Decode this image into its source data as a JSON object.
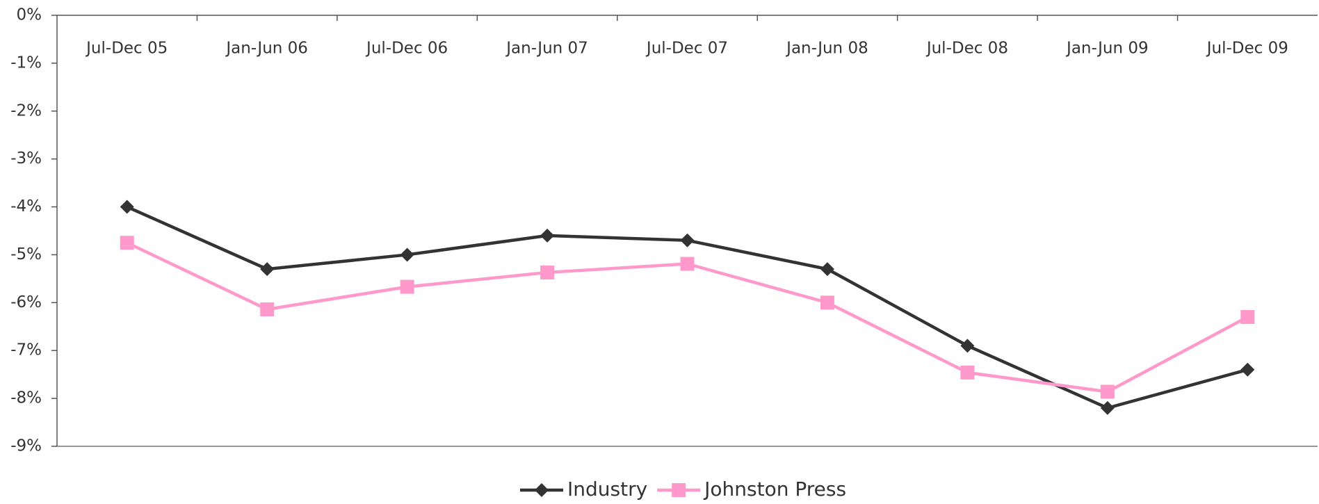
{
  "chart_data": {
    "type": "line",
    "categories": [
      "Jul-Dec 05",
      "Jan-Jun 06",
      "Jul-Dec 06",
      "Jan-Jun 07",
      "Jul-Dec 07",
      "Jan-Jun 08",
      "Jul-Dec 08",
      "Jan-Jun 09",
      "Jul-Dec 09"
    ],
    "series": [
      {
        "name": "Industry",
        "color": "#333333",
        "marker": "diamond",
        "values": [
          -4.0,
          -5.3,
          -5.0,
          -4.6,
          -4.7,
          -5.3,
          -6.9,
          -8.2,
          -7.4
        ]
      },
      {
        "name": "Johnston Press",
        "color": "#ff99cc",
        "marker": "square",
        "values": [
          -4.75,
          -6.14,
          -5.67,
          -5.37,
          -5.19,
          -6.0,
          -7.46,
          -7.86,
          -6.3
        ]
      }
    ],
    "ylim": [
      -9,
      0
    ],
    "yticks": [
      {
        "value": 0,
        "label": "0%"
      },
      {
        "value": -1,
        "label": "-1%"
      },
      {
        "value": -2,
        "label": "-2%"
      },
      {
        "value": -3,
        "label": "-3%"
      },
      {
        "value": -4,
        "label": "-4%"
      },
      {
        "value": -5,
        "label": "-5%"
      },
      {
        "value": -6,
        "label": "-6%"
      },
      {
        "value": -7,
        "label": "-7%"
      },
      {
        "value": -8,
        "label": "-8%"
      },
      {
        "value": -9,
        "label": "-9%"
      }
    ],
    "legend": "bottom"
  }
}
